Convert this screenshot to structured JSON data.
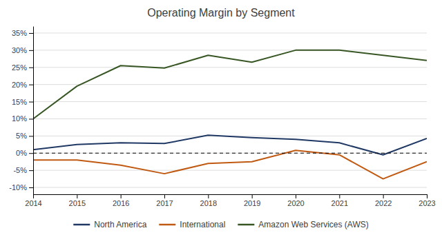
{
  "chart_data": {
    "type": "line",
    "title": "Operating Margin by Segment",
    "x": [
      2014,
      2015,
      2016,
      2017,
      2018,
      2019,
      2020,
      2021,
      2022,
      2023
    ],
    "series": [
      {
        "name": "North America",
        "color": "#1F3864",
        "values": [
          1.0,
          2.5,
          3.0,
          2.8,
          5.2,
          4.5,
          4.0,
          3.0,
          -0.5,
          4.3
        ]
      },
      {
        "name": "International",
        "color": "#C05911",
        "values": [
          -2.0,
          -2.0,
          -3.5,
          -6.0,
          -3.0,
          -2.5,
          0.8,
          -0.5,
          -7.5,
          -2.5
        ]
      },
      {
        "name": "Amazon Web Services (AWS)",
        "color": "#375623",
        "values": [
          10.0,
          19.5,
          25.5,
          24.8,
          28.5,
          26.5,
          30.0,
          30.0,
          28.5,
          27.0
        ]
      }
    ],
    "xlim": [
      2014,
      2023
    ],
    "xticks": [
      2014,
      2015,
      2016,
      2017,
      2018,
      2019,
      2020,
      2021,
      2022,
      2023
    ],
    "ylim": [
      -12,
      37
    ],
    "yticks": [
      {
        "value": -10,
        "label": "-10%"
      },
      {
        "value": -5,
        "label": "-5%"
      },
      {
        "value": 0,
        "label": "0%"
      },
      {
        "value": 5,
        "label": "5%"
      },
      {
        "value": 10,
        "label": "10%"
      },
      {
        "value": 15,
        "label": "15%"
      },
      {
        "value": 20,
        "label": "20%"
      },
      {
        "value": 25,
        "label": "25%"
      },
      {
        "value": 30,
        "label": "30%"
      },
      {
        "value": 35,
        "label": "35%"
      }
    ],
    "grid": true,
    "legend": "bottom"
  }
}
